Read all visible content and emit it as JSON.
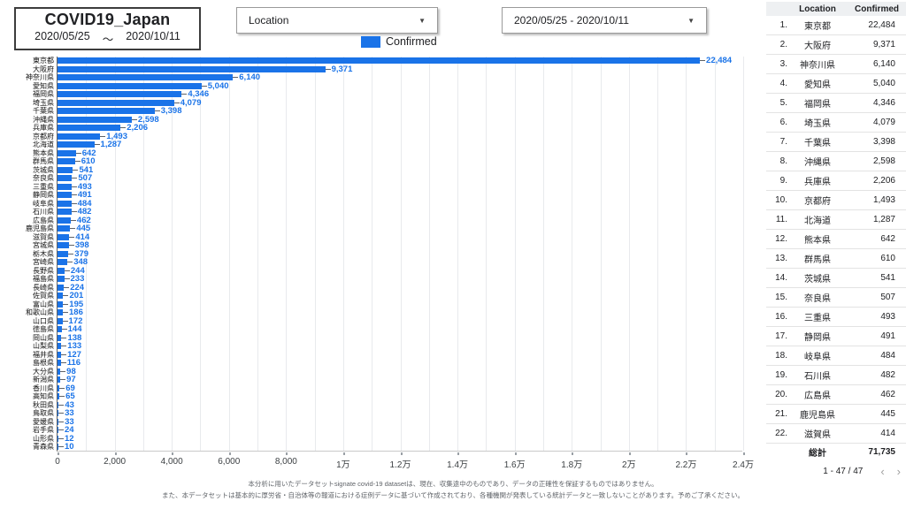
{
  "header": {
    "title": "COVID19_Japan",
    "date_start": "2020/05/25",
    "tilde": "～",
    "date_end": "2020/10/11",
    "location_filter_label": "Location",
    "date_filter_value": "2020/05/25 - 2020/10/11",
    "dropdown_arrow": "▼",
    "legend_label": "Confirmed",
    "legend_color": "#1a73e8"
  },
  "chart_data": {
    "type": "bar",
    "orientation": "horizontal",
    "title": "",
    "xlabel": "",
    "ylabel": "",
    "legend": [
      "Confirmed"
    ],
    "legend_position": "top",
    "grid": true,
    "bar_color": "#1a73e8",
    "xlim": [
      0,
      24000
    ],
    "gridline_step": 1000,
    "x_tick_values": [
      0,
      2000,
      4000,
      6000,
      8000,
      10000,
      12000,
      14000,
      16000,
      18000,
      20000,
      22000,
      24000
    ],
    "x_ticks": [
      "0",
      "2,000",
      "4,000",
      "6,000",
      "8,000",
      "1万",
      "1.2万",
      "1.4万",
      "1.6万",
      "1.8万",
      "2万",
      "2.2万",
      "2.4万"
    ],
    "categories": [
      "東京都",
      "大阪府",
      "神奈川県",
      "愛知県",
      "福岡県",
      "埼玉県",
      "千葉県",
      "沖縄県",
      "兵庫県",
      "京都府",
      "北海道",
      "熊本県",
      "群馬県",
      "茨城県",
      "奈良県",
      "三重県",
      "静岡県",
      "岐阜県",
      "石川県",
      "広島県",
      "鹿児島県",
      "滋賀県",
      "宮城県",
      "栃木県",
      "宮崎県",
      "長野県",
      "福島県",
      "長崎県",
      "佐賀県",
      "富山県",
      "和歌山県",
      "山口県",
      "徳島県",
      "岡山県",
      "山梨県",
      "福井県",
      "島根県",
      "大分県",
      "新潟県",
      "香川県",
      "高知県",
      "秋田県",
      "鳥取県",
      "愛媛県",
      "岩手県",
      "山形県",
      "青森県"
    ],
    "values": [
      22484,
      9371,
      6140,
      5040,
      4346,
      4079,
      3398,
      2598,
      2206,
      1493,
      1287,
      642,
      610,
      541,
      507,
      493,
      491,
      484,
      482,
      462,
      445,
      414,
      398,
      379,
      348,
      244,
      233,
      224,
      201,
      195,
      186,
      172,
      144,
      138,
      133,
      127,
      116,
      98,
      97,
      69,
      65,
      43,
      33,
      33,
      24,
      12,
      10
    ],
    "value_labels": [
      "22,484",
      "9,371",
      "6,140",
      "5,040",
      "4,346",
      "4,079",
      "3,398",
      "2,598",
      "2,206",
      "1,493",
      "1,287",
      "642",
      "610",
      "541",
      "507",
      "493",
      "491",
      "484",
      "482",
      "462",
      "445",
      "414",
      "398",
      "379",
      "348",
      "244",
      "233",
      "224",
      "201",
      "195",
      "186",
      "172",
      "144",
      "138",
      "133",
      "127",
      "116",
      "98",
      "97",
      "69",
      "65",
      "43",
      "33",
      "33",
      "24",
      "12",
      "10"
    ]
  },
  "table": {
    "columns": [
      "Location",
      "Confirmed"
    ],
    "rows": [
      {
        "rank": "1.",
        "location": "東京都",
        "confirmed": "22,484"
      },
      {
        "rank": "2.",
        "location": "大阪府",
        "confirmed": "9,371"
      },
      {
        "rank": "3.",
        "location": "神奈川県",
        "confirmed": "6,140"
      },
      {
        "rank": "4.",
        "location": "愛知県",
        "confirmed": "5,040"
      },
      {
        "rank": "5.",
        "location": "福岡県",
        "confirmed": "4,346"
      },
      {
        "rank": "6.",
        "location": "埼玉県",
        "confirmed": "4,079"
      },
      {
        "rank": "7.",
        "location": "千葉県",
        "confirmed": "3,398"
      },
      {
        "rank": "8.",
        "location": "沖縄県",
        "confirmed": "2,598"
      },
      {
        "rank": "9.",
        "location": "兵庫県",
        "confirmed": "2,206"
      },
      {
        "rank": "10.",
        "location": "京都府",
        "confirmed": "1,493"
      },
      {
        "rank": "11.",
        "location": "北海道",
        "confirmed": "1,287"
      },
      {
        "rank": "12.",
        "location": "熊本県",
        "confirmed": "642"
      },
      {
        "rank": "13.",
        "location": "群馬県",
        "confirmed": "610"
      },
      {
        "rank": "14.",
        "location": "茨城県",
        "confirmed": "541"
      },
      {
        "rank": "15.",
        "location": "奈良県",
        "confirmed": "507"
      },
      {
        "rank": "16.",
        "location": "三重県",
        "confirmed": "493"
      },
      {
        "rank": "17.",
        "location": "静岡県",
        "confirmed": "491"
      },
      {
        "rank": "18.",
        "location": "岐阜県",
        "confirmed": "484"
      },
      {
        "rank": "19.",
        "location": "石川県",
        "confirmed": "482"
      },
      {
        "rank": "20.",
        "location": "広島県",
        "confirmed": "462"
      },
      {
        "rank": "21.",
        "location": "鹿児島県",
        "confirmed": "445"
      },
      {
        "rank": "22.",
        "location": "滋賀県",
        "confirmed": "414"
      }
    ],
    "total_label": "総計",
    "total_value": "71,735",
    "pagination": "1 - 47 / 47",
    "prev_icon": "‹",
    "next_icon": "›"
  },
  "footer": {
    "line1": "本分析に用いたデータセットsignate covid-19 datasetは、現在、収集途中のものであり、データの正確性を保証するものではありません。",
    "line2": "また、本データセットは基本的に厚労省・自治体等の報道における症例データに基づいて作成されており、各種機関が発表している統計データと一致しないことがあります。予めご了承ください。"
  }
}
